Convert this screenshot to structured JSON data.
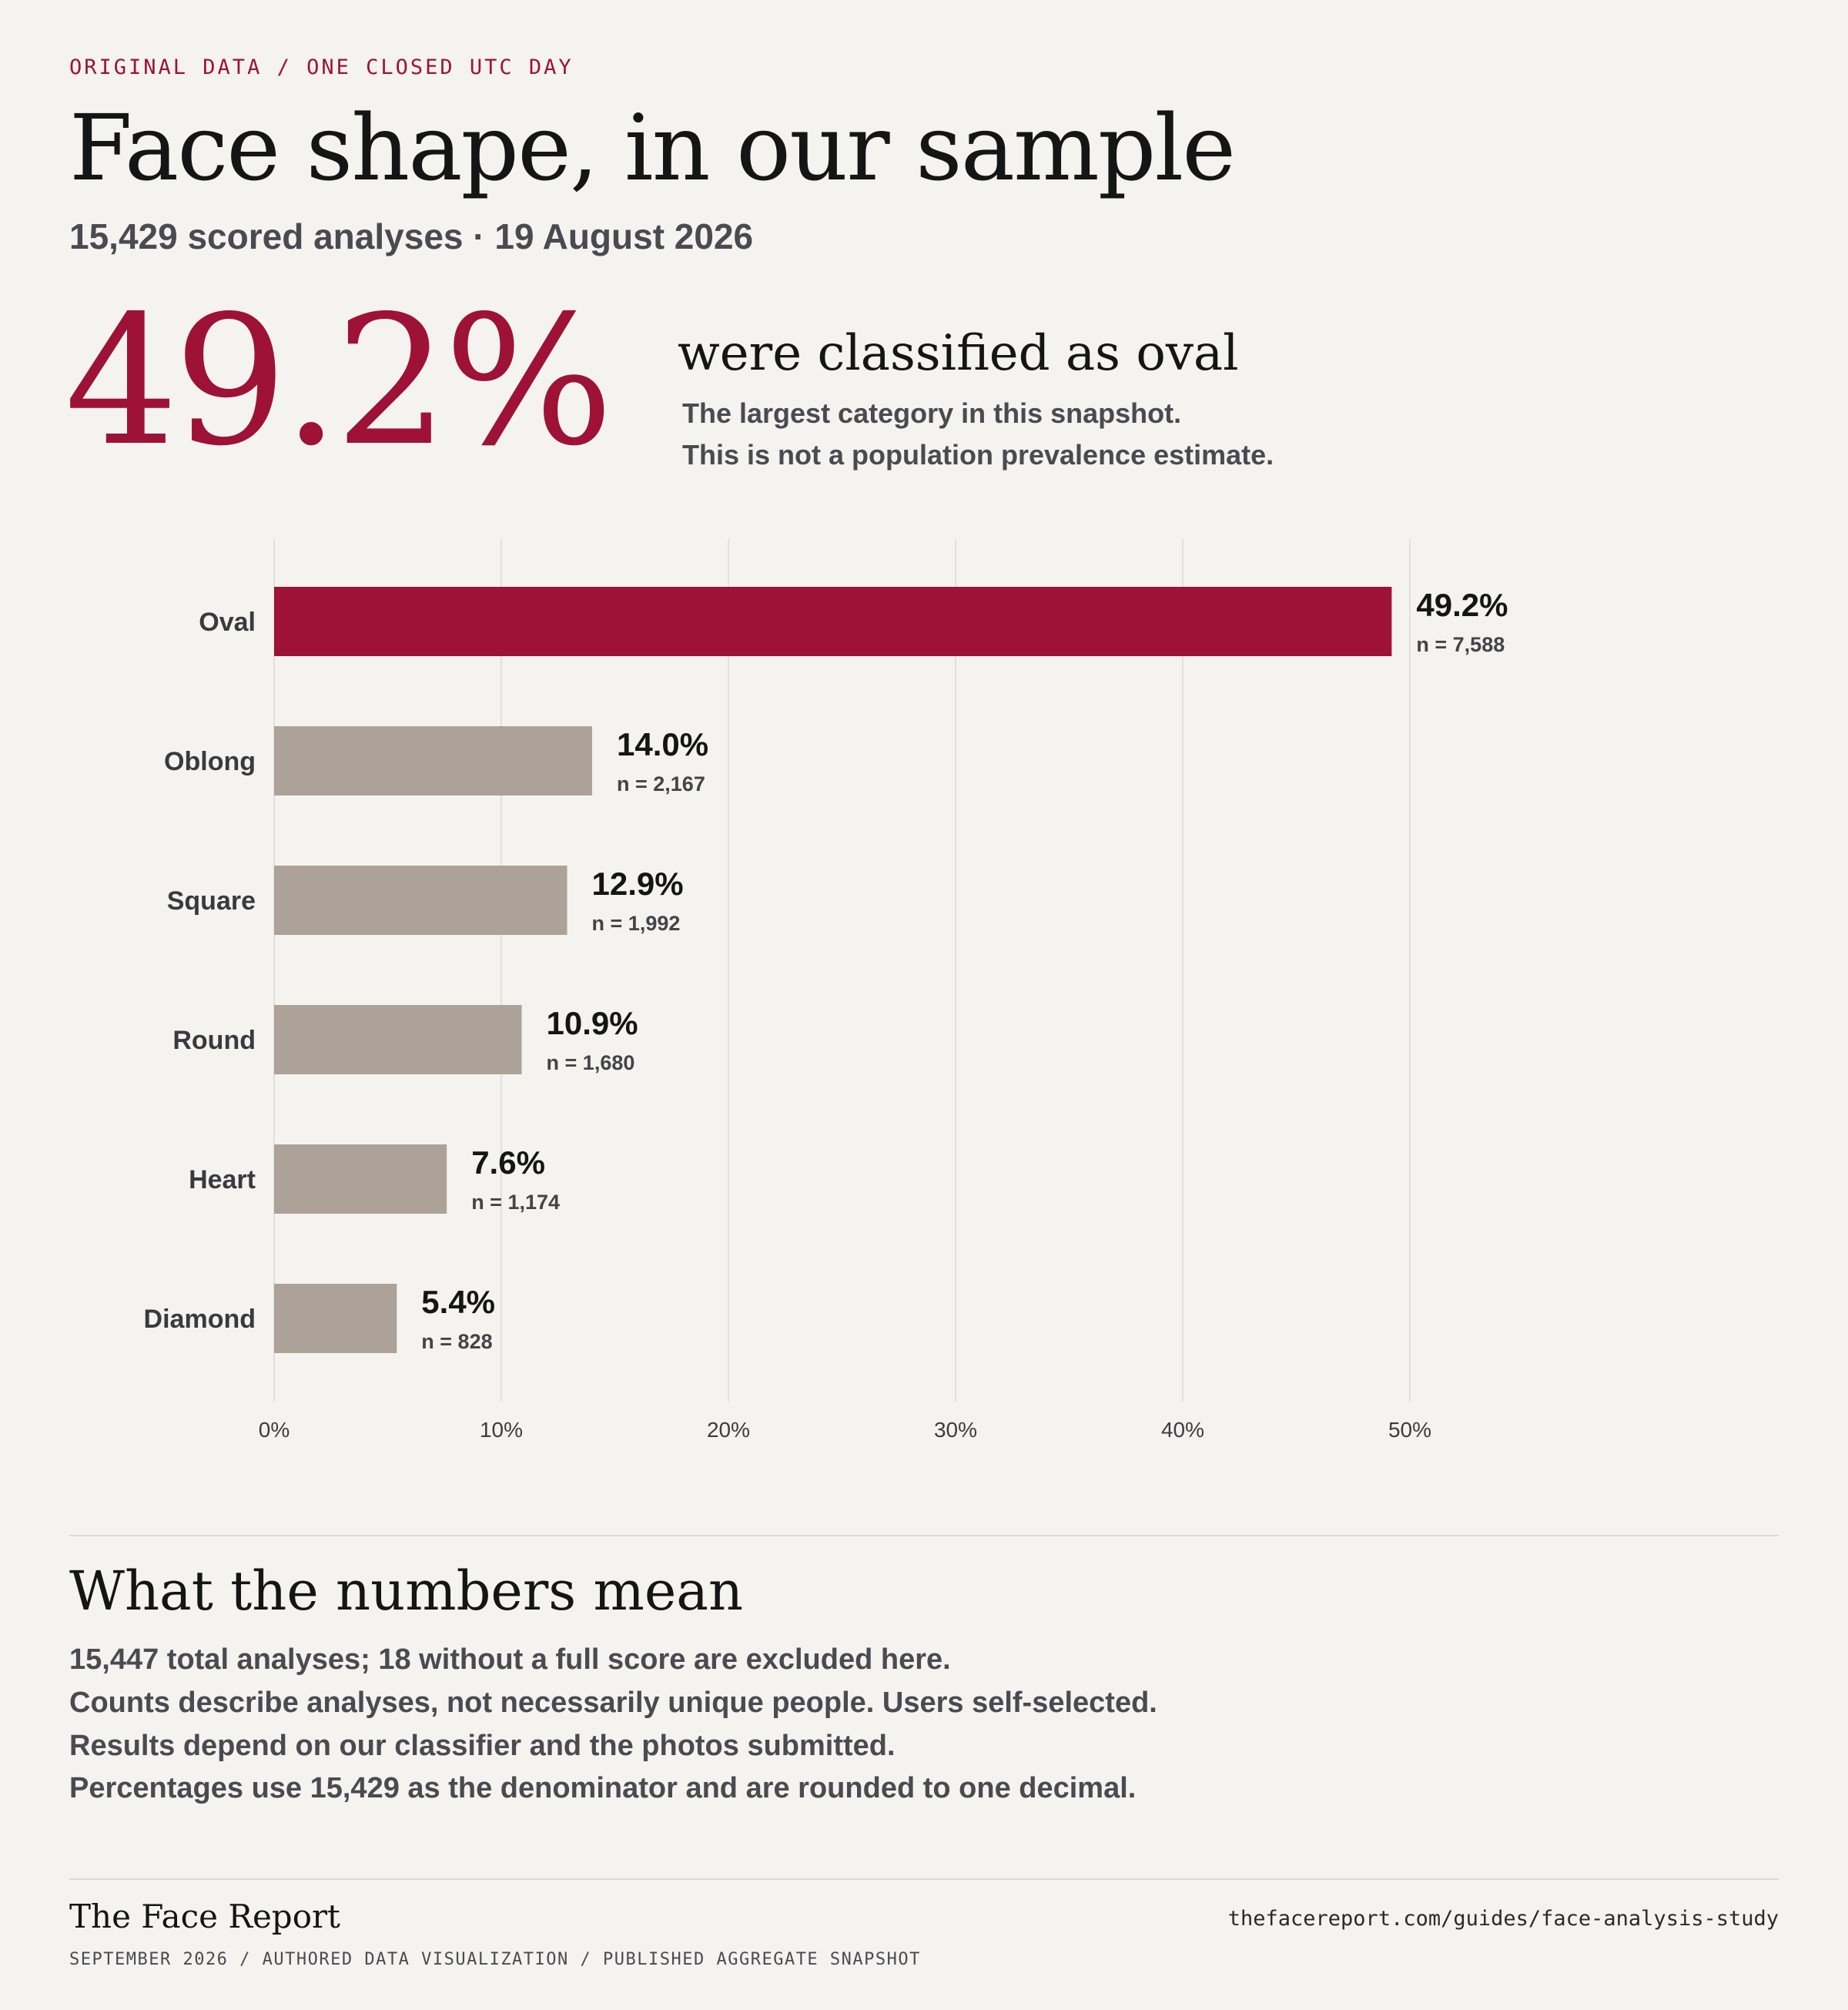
{
  "kicker": "ORIGINAL DATA / ONE CLOSED UTC DAY",
  "title": "Face shape, in our sample",
  "subtitle": "15,429 scored analyses · 19 August 2026",
  "highlight": {
    "big_value": "49.2%",
    "headline": "were classified as oval",
    "note_line1": "The largest category in this snapshot.",
    "note_line2": "This is not a population prevalence estimate."
  },
  "colors": {
    "accent": "#9e1237",
    "bar_muted": "#aca297",
    "background": "#f4f3ef",
    "grid": "#e2e0db"
  },
  "chart_data": {
    "type": "bar",
    "orientation": "horizontal",
    "categories": [
      "Oval",
      "Oblong",
      "Square",
      "Round",
      "Heart",
      "Diamond"
    ],
    "values": [
      49.2,
      14.0,
      12.9,
      10.9,
      7.6,
      5.4
    ],
    "value_labels": [
      "49.2%",
      "14.0%",
      "12.9%",
      "10.9%",
      "7.6%",
      "5.4%"
    ],
    "count_labels": [
      "n = 7,588",
      "n = 2,167",
      "n = 1,992",
      "n = 1,680",
      "n = 1,174",
      "n = 828"
    ],
    "highlight_index": 0,
    "xlim": [
      0,
      50
    ],
    "xticks": [
      0,
      10,
      20,
      30,
      40,
      50
    ],
    "xtick_labels": [
      "0%",
      "10%",
      "20%",
      "30%",
      "40%",
      "50%"
    ],
    "grid": true
  },
  "section": {
    "title": "What the numbers mean",
    "notes": [
      "15,447 total analyses; 18 without a full score are excluded here.",
      "Counts describe analyses, not necessarily unique people. Users self-selected.",
      "Results depend on our classifier and the photos submitted.",
      "Percentages use 15,429 as the denominator and are rounded to one decimal."
    ]
  },
  "footer": {
    "brand": "The Face Report",
    "meta": "SEPTEMBER 2026 / AUTHORED DATA VISUALIZATION / PUBLISHED AGGREGATE SNAPSHOT",
    "url": "thefacereport.com/guides/face-analysis-study"
  }
}
